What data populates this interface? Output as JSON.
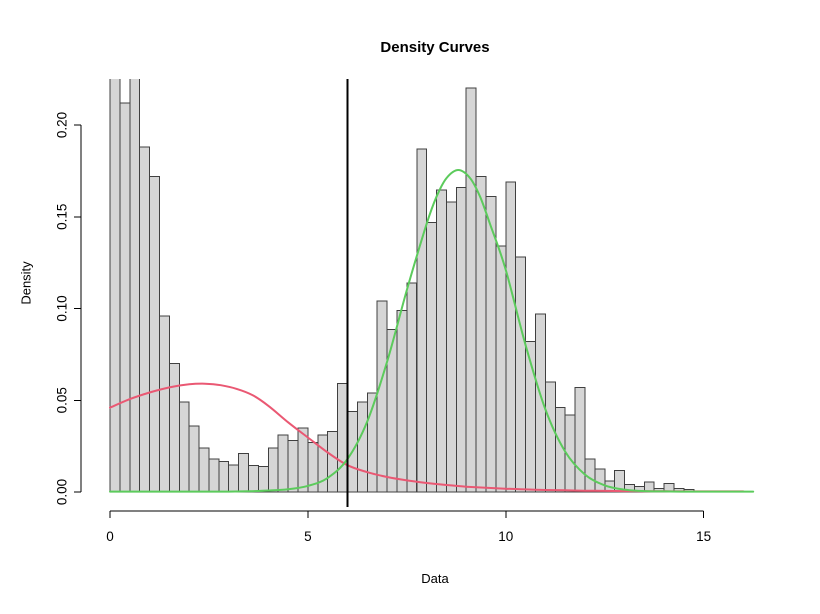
{
  "chart_data": {
    "type": "bar",
    "subtype": "histogram_with_density_curves",
    "title": "Density Curves",
    "xlabel": "Data",
    "ylabel": "Density",
    "x_ticks": {
      "values": [
        0,
        5,
        10,
        15
      ],
      "labels": [
        "0",
        "5",
        "10",
        "15"
      ]
    },
    "y_ticks": {
      "values": [
        0,
        0.05,
        0.1,
        0.15,
        0.2
      ],
      "labels": [
        "0.00",
        "0.05",
        "0.10",
        "0.15",
        "0.20"
      ]
    },
    "xlim": [
      0,
      16.4
    ],
    "ylim": [
      0,
      0.225
    ],
    "grid": false,
    "legend": "none",
    "histogram": {
      "bin_start": 0,
      "bin_width": 0.25,
      "fill_color": "#d6d6d6",
      "border_color": "#404040",
      "densities": [
        0.23,
        0.212,
        0.23,
        0.188,
        0.172,
        0.096,
        0.07,
        0.049,
        0.036,
        0.024,
        0.018,
        0.0165,
        0.0147,
        0.021,
        0.0144,
        0.0138,
        0.024,
        0.031,
        0.028,
        0.035,
        0.027,
        0.031,
        0.033,
        0.059,
        0.044,
        0.049,
        0.054,
        0.104,
        0.0885,
        0.099,
        0.114,
        0.187,
        0.147,
        0.1645,
        0.158,
        0.166,
        0.2203,
        0.172,
        0.161,
        0.134,
        0.169,
        0.128,
        0.082,
        0.097,
        0.06,
        0.046,
        0.042,
        0.057,
        0.018,
        0.0125,
        0.006,
        0.0116,
        0.004,
        0.003,
        0.0055,
        0.002,
        0.0045,
        0.002,
        0.0015
      ],
      "clipped_bins": [
        0,
        2
      ]
    },
    "vline": {
      "x": 6,
      "color": "#000000",
      "width": 2
    },
    "curves": [
      {
        "name": "red density curve",
        "color": "#ea5873",
        "points": [
          [
            0,
            0.046
          ],
          [
            0.5,
            0.0506
          ],
          [
            1,
            0.0542
          ],
          [
            1.5,
            0.057
          ],
          [
            2,
            0.0587
          ],
          [
            2.4,
            0.059
          ],
          [
            2.8,
            0.0582
          ],
          [
            3.2,
            0.0562
          ],
          [
            3.6,
            0.0528
          ],
          [
            4,
            0.047
          ],
          [
            4.5,
            0.038
          ],
          [
            5,
            0.0297
          ],
          [
            5.5,
            0.0215
          ],
          [
            6,
            0.0146
          ],
          [
            6.5,
            0.0108
          ],
          [
            7,
            0.0082
          ],
          [
            7.5,
            0.0063
          ],
          [
            8,
            0.0049
          ],
          [
            8.5,
            0.0038
          ],
          [
            9,
            0.0029
          ],
          [
            9.5,
            0.0023
          ],
          [
            10,
            0.0018
          ],
          [
            10.5,
            0.0014
          ],
          [
            11,
            0.0011
          ],
          [
            11.5,
            0.0009
          ],
          [
            12,
            0.0007
          ],
          [
            12.5,
            0.0006
          ],
          [
            13,
            0.0005
          ],
          [
            13.5,
            0.0004
          ],
          [
            14,
            0.0004
          ],
          [
            14.5,
            0.0003
          ],
          [
            15,
            0.0003
          ],
          [
            15.5,
            0.0003
          ],
          [
            16,
            0.0003
          ]
        ]
      },
      {
        "name": "green density curve",
        "color": "#5ccb5c",
        "points": [
          [
            0,
            0.0002
          ],
          [
            1,
            0.0002
          ],
          [
            2,
            0.0002
          ],
          [
            3,
            0.0002
          ],
          [
            3.5,
            0.0004
          ],
          [
            4,
            0.0008
          ],
          [
            4.5,
            0.0015
          ],
          [
            5,
            0.0033
          ],
          [
            5.5,
            0.0077
          ],
          [
            6,
            0.018
          ],
          [
            6.5,
            0.0385
          ],
          [
            7,
            0.071
          ],
          [
            7.5,
            0.11
          ],
          [
            8,
            0.1461
          ],
          [
            8.25,
            0.1609
          ],
          [
            8.5,
            0.171
          ],
          [
            8.8,
            0.1755
          ],
          [
            9.1,
            0.171
          ],
          [
            9.35,
            0.1609
          ],
          [
            9.6,
            0.1461
          ],
          [
            10,
            0.121
          ],
          [
            10.5,
            0.08
          ],
          [
            11,
            0.045
          ],
          [
            11.5,
            0.022
          ],
          [
            12,
            0.0095
          ],
          [
            12.5,
            0.0036
          ],
          [
            13,
            0.0013
          ],
          [
            13.5,
            0.0005
          ],
          [
            14,
            0.0003
          ],
          [
            14.5,
            0.0002
          ],
          [
            15,
            0.0002
          ],
          [
            15.5,
            0.0002
          ],
          [
            16.25,
            0.0002
          ]
        ]
      }
    ]
  }
}
